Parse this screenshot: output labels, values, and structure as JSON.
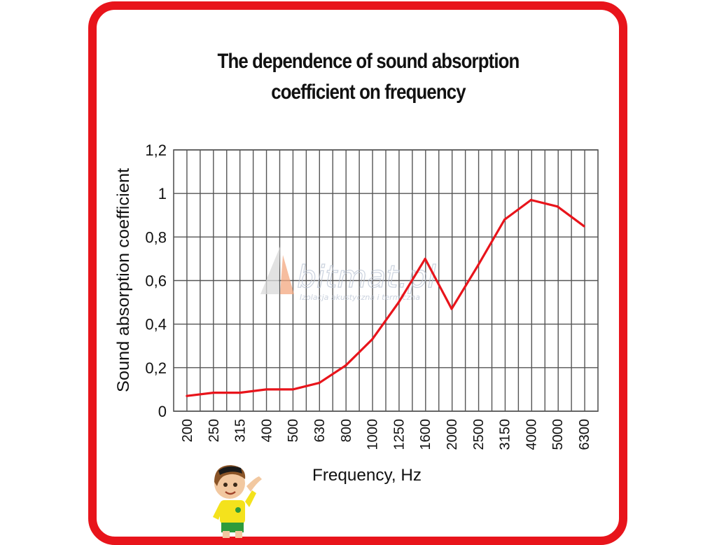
{
  "chart_data": {
    "type": "line",
    "title_lines": [
      "The dependence of sound absorption",
      "coefficient on frequency"
    ],
    "xlabel": "Frequency, Hz",
    "ylabel": "Sound absorption  coefficient",
    "categories": [
      "200",
      "250",
      "315",
      "400",
      "500",
      "630",
      "800",
      "1000",
      "1250",
      "1600",
      "2000",
      "2500",
      "3150",
      "4000",
      "5000",
      "6300"
    ],
    "y_ticks": [
      "0",
      "0,2",
      "0,4",
      "0,6",
      "0,8",
      "1",
      "1,2"
    ],
    "ylim": [
      0,
      1.2
    ],
    "series": [
      {
        "values": [
          0.07,
          0.085,
          0.085,
          0.1,
          0.1,
          0.13,
          0.21,
          0.33,
          0.5,
          0.7,
          0.47,
          0.67,
          0.88,
          0.97,
          0.94,
          0.85
        ]
      }
    ],
    "grid": true,
    "line_color": "#e8141b"
  },
  "watermark": {
    "brand": "bitmat.pl",
    "tagline": "Izolacja akustyczna i termiczna"
  },
  "colors": {
    "frame": "#e8141b",
    "grid": "#555555",
    "line": "#e8141b"
  }
}
